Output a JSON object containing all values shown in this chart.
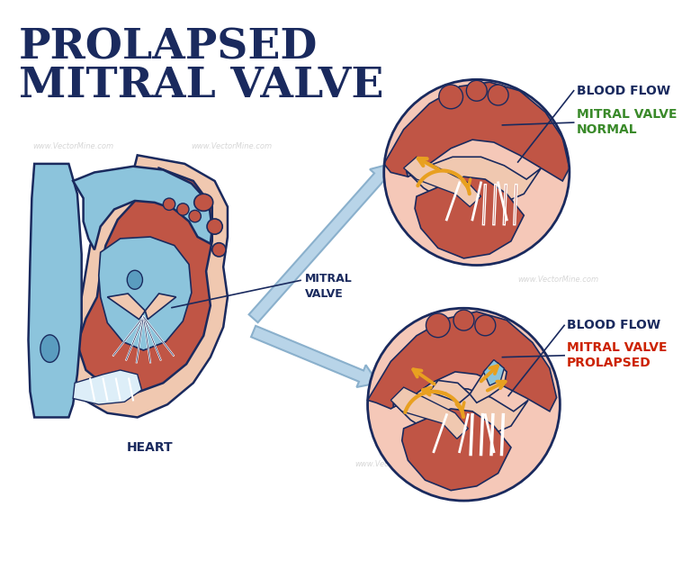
{
  "title_line1": "PROLAPSED",
  "title_line2": "MITRAL VALVE",
  "title_color": "#1a2a5e",
  "title_fontsize": 34,
  "bg_color": "#ffffff",
  "heart_label": "HEART",
  "mitral_label": "MITRAL\nVALVE",
  "label_color": "#1a2a5e",
  "normal_label_line1": "NORMAL",
  "normal_label_line2": "MITRAL VALVE",
  "normal_label_color": "#3a8a2a",
  "blood_flow_label": "BLOOD FLOW",
  "prolapsed_label_line1": "PROLAPSED",
  "prolapsed_label_line2": "MITRAL VALVE",
  "prolapsed_label_color": "#cc2200",
  "circle_fill_normal": "#f5c8b8",
  "circle_fill_prolapsed": "#f5c8b8",
  "heart_pink_light": "#e8a090",
  "heart_pink_dark": "#c05545",
  "heart_blue_light": "#8cc4dc",
  "heart_blue_dark": "#5a9cbf",
  "heart_outline": "#1a2a5e",
  "skin_pink": "#f0c8b0",
  "arrow_blue_fill": "#b8d4e8",
  "arrow_blue_edge": "#8ab0cc",
  "arrow_yellow": "#e8a020",
  "arrow_yellow_edge": "#c07800",
  "white_color": "#ffffff",
  "watermark": "www.VectorMine.com"
}
